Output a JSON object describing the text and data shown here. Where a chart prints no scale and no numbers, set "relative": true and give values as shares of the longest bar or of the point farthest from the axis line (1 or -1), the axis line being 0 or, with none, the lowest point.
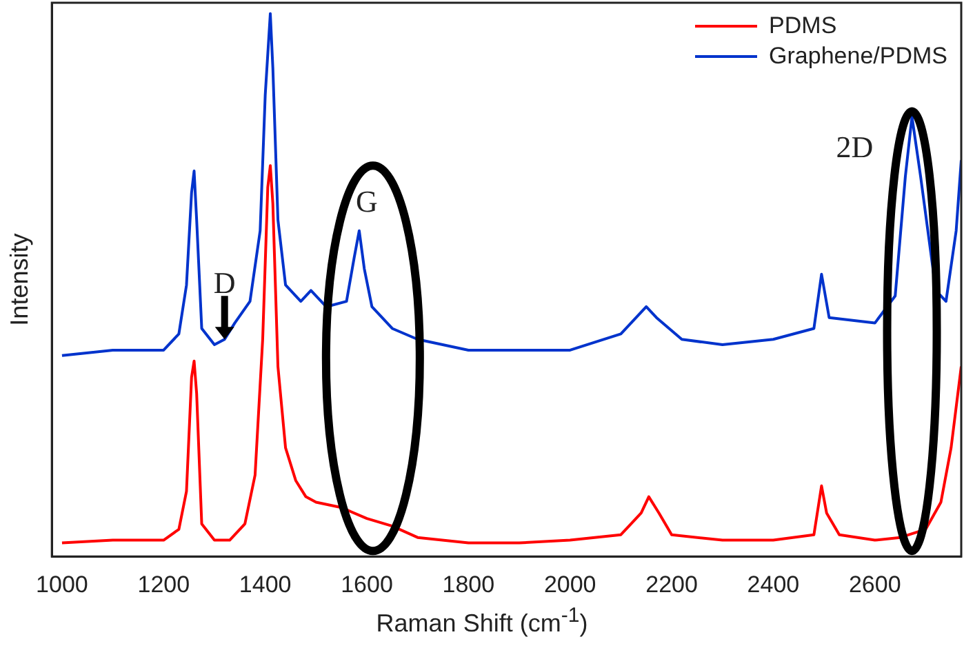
{
  "chart_data": {
    "type": "line",
    "xlabel": "Raman Shift (cm$^{-1}$)",
    "ylabel": "Intensity",
    "relative": true,
    "xlim": [
      980,
      2770
    ],
    "xticks": [
      1000,
      1200,
      1400,
      1600,
      1800,
      2000,
      2200,
      2400,
      2600
    ],
    "tick_labels": "x",
    "legend": "top right",
    "grid": false,
    "marker": "none",
    "line_style": "solid",
    "annotations": [
      "D",
      "G",
      "2D"
    ],
    "x": [
      1000,
      1100,
      1200,
      1230,
      1245,
      1255,
      1260,
      1265,
      1275,
      1300,
      1320,
      1340,
      1370,
      1390,
      1400,
      1410,
      1415,
      1425,
      1440,
      1470,
      1490,
      1520,
      1560,
      1575,
      1585,
      1595,
      1610,
      1650,
      1700,
      1800,
      1900,
      2000,
      2100,
      2150,
      2170,
      2220,
      2300,
      2400,
      2480,
      2495,
      2510,
      2600,
      2640,
      2660,
      2673,
      2690,
      2720,
      2740,
      2760,
      2770
    ],
    "series": [
      {
        "name": "PDMS",
        "color": "#ff0000",
        "x": [
          1000,
          1100,
          1200,
          1230,
          1245,
          1255,
          1260,
          1265,
          1275,
          1300,
          1330,
          1360,
          1380,
          1395,
          1405,
          1410,
          1415,
          1425,
          1440,
          1460,
          1480,
          1500,
          1550,
          1600,
          1650,
          1700,
          1800,
          1900,
          2000,
          2100,
          2140,
          2155,
          2175,
          2200,
          2300,
          2400,
          2480,
          2495,
          2505,
          2530,
          2600,
          2650,
          2700,
          2730,
          2750,
          2770
        ],
        "values": [
          0.025,
          0.03,
          0.03,
          0.05,
          0.12,
          0.33,
          0.36,
          0.3,
          0.06,
          0.03,
          0.03,
          0.06,
          0.15,
          0.4,
          0.68,
          0.72,
          0.65,
          0.35,
          0.2,
          0.14,
          0.11,
          0.1,
          0.09,
          0.07,
          0.056,
          0.035,
          0.025,
          0.025,
          0.03,
          0.04,
          0.08,
          0.11,
          0.08,
          0.04,
          0.03,
          0.03,
          0.04,
          0.13,
          0.08,
          0.04,
          0.03,
          0.035,
          0.05,
          0.1,
          0.2,
          0.35
        ]
      },
      {
        "name": "Graphene/PDMS",
        "color": "#0033cc",
        "values": [
          0.37,
          0.38,
          0.38,
          0.41,
          0.5,
          0.67,
          0.71,
          0.62,
          0.42,
          0.39,
          0.4,
          0.43,
          0.47,
          0.6,
          0.85,
          1,
          0.9,
          0.62,
          0.5,
          0.47,
          0.49,
          0.46,
          0.47,
          0.55,
          0.6,
          0.53,
          0.46,
          0.42,
          0.4,
          0.38,
          0.38,
          0.38,
          0.41,
          0.46,
          0.44,
          0.4,
          0.39,
          0.4,
          0.42,
          0.52,
          0.44,
          0.43,
          0.48,
          0.7,
          0.81,
          0.7,
          0.49,
          0.47,
          0.6,
          0.73
        ]
      }
    ]
  }
}
